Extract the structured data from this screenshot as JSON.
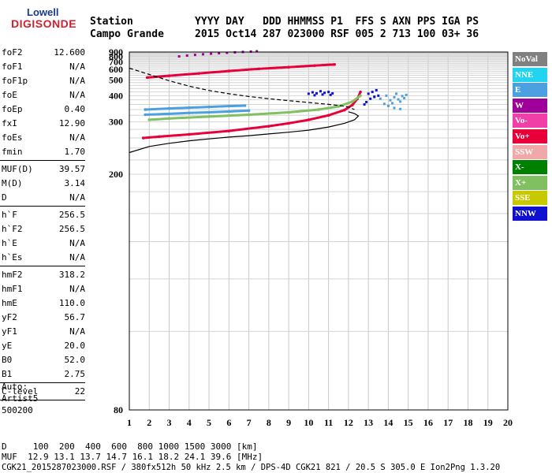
{
  "logo": {
    "line1": "Lowell",
    "line2": "DIGISONDE"
  },
  "header": {
    "row1": "Station          YYYY DAY   DDD HHMMSS P1  FFS S AXN PPS IGA PS",
    "row2": "Campo Grande     2015 Oct14 287 023000 RSF 005 2 713 100 03+ 36"
  },
  "params": [
    [
      {
        "k": "foF2",
        "v": "12.600"
      },
      {
        "k": "foF1",
        "v": "N/A"
      },
      {
        "k": "foF1p",
        "v": "N/A"
      },
      {
        "k": "foE",
        "v": "N/A"
      },
      {
        "k": "foEp",
        "v": "0.40"
      },
      {
        "k": "fxI",
        "v": "12.90"
      },
      {
        "k": "foEs",
        "v": "N/A"
      },
      {
        "k": "fmin",
        "v": "1.70"
      }
    ],
    [
      {
        "k": "MUF(D)",
        "v": "39.57"
      },
      {
        "k": "M(D)",
        "v": "3.14"
      },
      {
        "k": "D",
        "v": "N/A"
      }
    ],
    [
      {
        "k": "h`F",
        "v": "256.5"
      },
      {
        "k": "h`F2",
        "v": "256.5"
      },
      {
        "k": "h`E",
        "v": "N/A"
      },
      {
        "k": "h`Es",
        "v": "N/A"
      }
    ],
    [
      {
        "k": "hmF2",
        "v": "318.2"
      },
      {
        "k": "hmF1",
        "v": "N/A"
      },
      {
        "k": "hmE",
        "v": "110.0"
      },
      {
        "k": "yF2",
        "v": "56.7"
      },
      {
        "k": "yF1",
        "v": "N/A"
      },
      {
        "k": "yE",
        "v": "20.0"
      },
      {
        "k": "B0",
        "v": "52.0"
      },
      {
        "k": "B1",
        "v": "2.75"
      }
    ],
    [
      {
        "k": "C-level",
        "v": "22"
      }
    ]
  ],
  "auto": {
    "l1": "Auto:",
    "l2": "Artist5",
    "l3": "500200"
  },
  "legend": [
    {
      "label": "NoVal",
      "bg": "#808080",
      "fg": "#ffffff"
    },
    {
      "label": "NNE",
      "bg": "#22d4f0",
      "fg": "#ffffff"
    },
    {
      "label": "E",
      "bg": "#4aa0e0",
      "fg": "#ffffff"
    },
    {
      "label": "W",
      "bg": "#a0009a",
      "fg": "#ffffff"
    },
    {
      "label": "Vo-",
      "bg": "#f040a8",
      "fg": "#ffffff"
    },
    {
      "label": "Vo+",
      "bg": "#e8003a",
      "fg": "#ffffff"
    },
    {
      "label": "SSW",
      "bg": "#f0a8a8",
      "fg": "#ffffff"
    },
    {
      "label": "X-",
      "bg": "#008000",
      "fg": "#ffffff"
    },
    {
      "label": "X+",
      "bg": "#80c060",
      "fg": "#ffffff"
    },
    {
      "label": "SSE",
      "bg": "#c8c800",
      "fg": "#ffffff"
    },
    {
      "label": "NNW",
      "bg": "#1010d0",
      "fg": "#ffffff"
    }
  ],
  "footer": {
    "d_row": "D     100  200  400  600  800 1000 1500 3000 [km]",
    "muf_row": "MUF  12.9 13.1 13.7 14.7 16.1 18.2 24.1 39.6 [MHz]",
    "info_row": "CGK21_2015287023000.RSF / 380fx512h 50 kHz 2.5 km / DPS-4D CGK21 821 / 20.5 S 305.0 E Ion2Png 1.3.20"
  },
  "chart_data": {
    "type": "scatter",
    "title": "",
    "xlabel": "",
    "ylabel": "",
    "x_ticks": [
      "1",
      "2",
      "3",
      "4",
      "5",
      "6",
      "7",
      "8",
      "9",
      "10",
      "11",
      "12",
      "13",
      "14",
      "15",
      "16",
      "17",
      "18",
      "19",
      "20"
    ],
    "y_ticks": [
      "80",
      "200",
      "300",
      "400",
      "500",
      "600",
      "700",
      "800",
      "900"
    ],
    "xlim": [
      1,
      20
    ],
    "y_scale": "reciprocal",
    "ylim": [
      80,
      900
    ],
    "grid": true,
    "series": [
      {
        "name": "Vo+",
        "style": "trace",
        "color": "#e8003a",
        "x": [
          1.7,
          2.5,
          4,
          6,
          8,
          9,
          10,
          11,
          11.8,
          12.2,
          12.45,
          12.6
        ],
        "y": [
          260,
          263,
          268,
          276,
          288,
          296,
          306,
          320,
          338,
          358,
          385,
          420
        ]
      },
      {
        "name": "Vo+",
        "style": "trace",
        "color": "#e8003a",
        "x": [
          1.9,
          3,
          4.5,
          6,
          7.5,
          9,
          10.3,
          11.3
        ],
        "y": [
          520,
          536,
          558,
          583,
          608,
          628,
          648,
          664
        ]
      },
      {
        "name": "X+",
        "style": "trace",
        "color": "#80c060",
        "x": [
          2,
          3,
          5,
          7,
          9,
          10.5,
          11.5,
          12.2,
          12.6
        ],
        "y": [
          306,
          310,
          316,
          322,
          330,
          340,
          352,
          372,
          400
        ]
      },
      {
        "name": "E",
        "style": "trace",
        "color": "#4aa0e0",
        "x": [
          1.8,
          3,
          4,
          5,
          6,
          6.8
        ],
        "y": [
          340,
          344,
          347,
          350,
          353,
          355
        ]
      },
      {
        "name": "E",
        "style": "trace",
        "color": "#4aa0e0",
        "x": [
          1.8,
          3,
          4,
          5,
          6,
          7
        ],
        "y": [
          322,
          325,
          328,
          330,
          333,
          336
        ]
      },
      {
        "name": "E",
        "style": "scatter",
        "color": "#4aa0e0",
        "x": [
          13.3,
          13.6,
          13.9,
          14.1,
          14.3,
          14.5,
          14.7,
          14.9,
          14.2,
          14.4,
          14.6,
          14.8,
          13.8,
          14.0,
          14.3,
          14.6
        ],
        "y": [
          392,
          385,
          400,
          378,
          392,
          382,
          398,
          404,
          365,
          410,
          372,
          388,
          362,
          354,
          346,
          342
        ]
      },
      {
        "name": "NNW",
        "style": "scatter",
        "color": "#1010d0",
        "x": [
          10.0,
          10.2,
          10.4,
          10.6,
          10.8,
          11.0,
          11.2,
          10.3,
          10.7,
          11.1,
          12.9,
          13.1,
          13.3,
          13.0,
          13.2,
          13.4,
          12.8,
          13.5
        ],
        "y": [
          410,
          418,
          412,
          424,
          415,
          420,
          412,
          402,
          406,
          404,
          370,
          385,
          395,
          410,
          420,
          430,
          360,
          400
        ]
      },
      {
        "name": "W",
        "style": "scatter",
        "color": "#a0009a",
        "x": [
          3.5,
          3.9,
          4.3,
          4.7,
          5.1,
          5.5,
          5.9,
          6.3,
          6.7,
          7.1,
          7.4
        ],
        "y": [
          800,
          816,
          832,
          846,
          858,
          870,
          881,
          892,
          902,
          912,
          920
        ]
      },
      {
        "name": "model-a",
        "style": "model-dashed",
        "color": "#000000",
        "x": [
          1.0,
          1.5,
          2.0,
          2.5,
          3.0,
          4.0,
          5.0,
          6.0,
          7.0,
          8.0,
          9.0,
          10.0,
          10.5,
          11.0,
          11.5,
          12.0,
          12.3
        ],
        "y": [
          615,
          580,
          548,
          520,
          494,
          455,
          428,
          410,
          396,
          385,
          376,
          368,
          364,
          360,
          356,
          350,
          340
        ]
      },
      {
        "name": "model-b",
        "style": "model-solid",
        "color": "#000000",
        "x": [
          1.0,
          2.0,
          3.0,
          4.0,
          5.0,
          6.0,
          7.0,
          8.0,
          9.0,
          10.0,
          11.0,
          11.8,
          12.3,
          12.5,
          12.3,
          12.0
        ],
        "y": [
          232,
          243,
          249,
          254,
          258,
          262,
          265,
          269,
          273,
          278,
          286,
          296,
          306,
          318,
          326,
          332
        ]
      }
    ]
  }
}
